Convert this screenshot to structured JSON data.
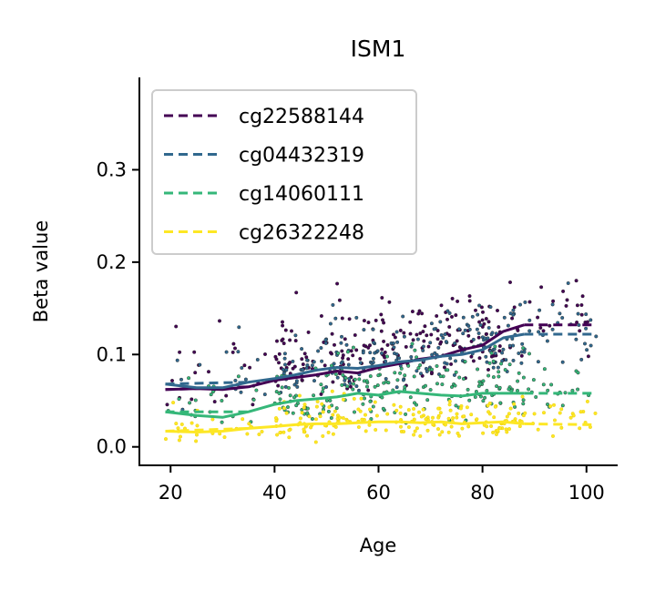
{
  "chart_data": {
    "type": "scatter",
    "title": "ISM1",
    "xlabel": "Age",
    "ylabel": "Beta value",
    "xlim": [
      14,
      106
    ],
    "ylim": [
      -0.02,
      0.4
    ],
    "xticks": [
      20,
      40,
      60,
      80,
      100
    ],
    "yticks": [
      0.0,
      0.1,
      0.2,
      0.3
    ],
    "xtick_labels": [
      "20",
      "40",
      "60",
      "80",
      "100"
    ],
    "ytick_labels": [
      "0.0",
      "0.1",
      "0.2",
      "0.3"
    ],
    "grid": false,
    "legend_placement": "top-left",
    "series": [
      {
        "name": "cg22588144",
        "color": "#440154",
        "trend": {
          "x": [
            19,
            25,
            30,
            35,
            40,
            44,
            48,
            52,
            56,
            60,
            64,
            68,
            72,
            76,
            80,
            84,
            88,
            101
          ],
          "y": [
            0.062,
            0.063,
            0.062,
            0.065,
            0.072,
            0.075,
            0.078,
            0.082,
            0.08,
            0.086,
            0.09,
            0.095,
            0.098,
            0.105,
            0.11,
            0.125,
            0.132,
            0.132
          ]
        },
        "scatter_center": [
          0.062,
          0.075,
          0.092,
          0.105,
          0.12,
          0.135
        ],
        "scatter_spread": 0.055
      },
      {
        "name": "cg04432319",
        "color": "#31688e",
        "trend": {
          "x": [
            19,
            25,
            30,
            35,
            40,
            44,
            48,
            52,
            56,
            60,
            64,
            68,
            72,
            76,
            80,
            84,
            88,
            101
          ],
          "y": [
            0.068,
            0.064,
            0.064,
            0.07,
            0.074,
            0.078,
            0.083,
            0.086,
            0.085,
            0.088,
            0.092,
            0.094,
            0.098,
            0.1,
            0.105,
            0.118,
            0.122,
            0.122
          ]
        },
        "scatter_center": [
          0.064,
          0.075,
          0.09,
          0.1,
          0.11,
          0.122
        ],
        "scatter_spread": 0.05
      },
      {
        "name": "cg14060111",
        "color": "#35b779",
        "trend": {
          "x": [
            19,
            25,
            30,
            35,
            40,
            44,
            48,
            52,
            56,
            60,
            64,
            68,
            72,
            76,
            80,
            84,
            88,
            101
          ],
          "y": [
            0.038,
            0.034,
            0.032,
            0.038,
            0.046,
            0.05,
            0.052,
            0.054,
            0.058,
            0.056,
            0.06,
            0.058,
            0.056,
            0.055,
            0.058,
            0.058,
            0.058,
            0.058
          ]
        },
        "scatter_center": [
          0.035,
          0.045,
          0.055,
          0.057,
          0.057,
          0.058
        ],
        "scatter_spread": 0.04
      },
      {
        "name": "cg26322248",
        "color": "#fde725",
        "trend": {
          "x": [
            19,
            25,
            30,
            35,
            40,
            44,
            48,
            52,
            56,
            60,
            64,
            68,
            72,
            76,
            80,
            84,
            88,
            101
          ],
          "y": [
            0.017,
            0.016,
            0.017,
            0.02,
            0.022,
            0.024,
            0.025,
            0.025,
            0.026,
            0.027,
            0.027,
            0.026,
            0.027,
            0.025,
            0.026,
            0.027,
            0.025,
            0.024
          ]
        },
        "scatter_center": [
          0.017,
          0.022,
          0.026,
          0.027,
          0.026,
          0.025
        ],
        "scatter_spread": 0.025
      }
    ]
  }
}
